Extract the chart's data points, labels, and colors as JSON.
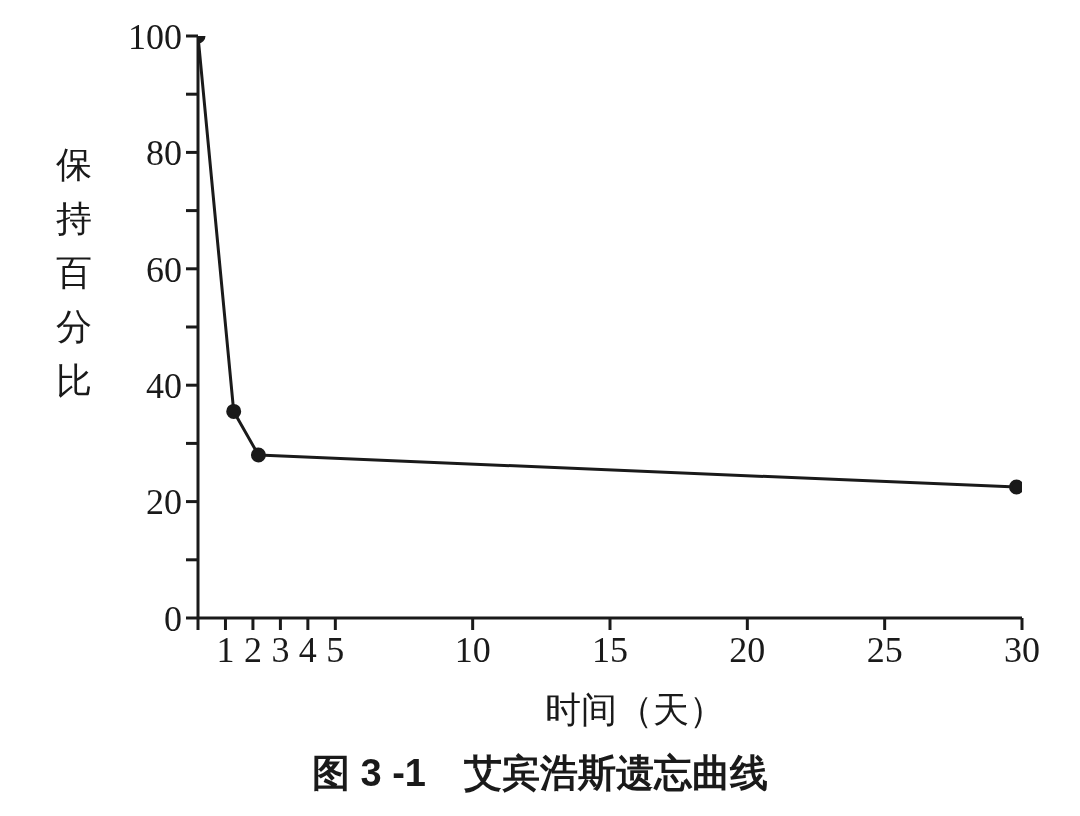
{
  "chart_data": {
    "type": "line",
    "title": "图 3 -1　艾宾浩斯遗忘曲线",
    "xlabel": "时间（天）",
    "ylabel": "保持百分比",
    "x": [
      0,
      1.3,
      2.2,
      29.8
    ],
    "series": [
      {
        "color": "#1a1a1a",
        "values": [
          100,
          35.5,
          28,
          22.5
        ]
      }
    ],
    "xlim": [
      0,
      30
    ],
    "ylim": [
      0,
      100
    ],
    "xticks": [
      {
        "value": 0,
        "label": null
      },
      1,
      2,
      3,
      4,
      5,
      10,
      15,
      20,
      25,
      30
    ],
    "yticks": [
      0,
      {
        "value": 10,
        "label": null
      },
      20,
      {
        "value": 30,
        "label": null
      },
      40,
      {
        "value": 50,
        "label": null
      },
      60,
      {
        "value": 70,
        "label": null
      },
      80,
      {
        "value": 90,
        "label": null
      },
      100
    ],
    "grid": false,
    "legend": false,
    "marker": "circle",
    "line_style": "solid"
  }
}
